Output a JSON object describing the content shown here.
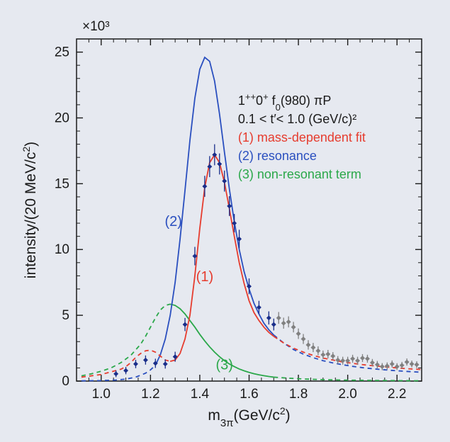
{
  "chart": {
    "type": "line+scatter",
    "background_color": "#e6e9f0",
    "plot_bg": "#e6e9f0",
    "border_color": "#1a1a1a",
    "xlim": [
      0.9,
      2.3
    ],
    "ylim": [
      0,
      26
    ],
    "xticks": [
      1.0,
      1.2,
      1.4,
      1.6,
      1.8,
      2.0,
      2.2
    ],
    "yticks": [
      0,
      5,
      10,
      15,
      20,
      25
    ],
    "xlabel": "m₃π(GeV/c²)",
    "ylabel": "intensity/(20 MeV/c²)",
    "y_exponent": "×10³",
    "curves": {
      "fit": {
        "color": "#e63c2e",
        "width": 1.8,
        "solid": [
          [
            1.28,
            1.5
          ],
          [
            1.3,
            1.6
          ],
          [
            1.32,
            2.1
          ],
          [
            1.34,
            3.2
          ],
          [
            1.36,
            5.0
          ],
          [
            1.38,
            8.0
          ],
          [
            1.4,
            11.6
          ],
          [
            1.42,
            14.7
          ],
          [
            1.44,
            16.6
          ],
          [
            1.46,
            17.2
          ],
          [
            1.48,
            16.6
          ],
          [
            1.5,
            15.1
          ],
          [
            1.52,
            13.1
          ],
          [
            1.54,
            11.0
          ],
          [
            1.56,
            9.0
          ],
          [
            1.58,
            7.4
          ],
          [
            1.6,
            6.1
          ],
          [
            1.62,
            5.2
          ],
          [
            1.64,
            4.6
          ],
          [
            1.66,
            4.1
          ],
          [
            1.68,
            3.7
          ],
          [
            1.7,
            3.4
          ]
        ],
        "dash": [
          [
            0.92,
            0.3
          ],
          [
            0.96,
            0.4
          ],
          [
            1.0,
            0.5
          ],
          [
            1.04,
            0.7
          ],
          [
            1.08,
            0.9
          ],
          [
            1.1,
            1.1
          ],
          [
            1.12,
            1.4
          ],
          [
            1.14,
            1.8
          ],
          [
            1.16,
            2.1
          ],
          [
            1.18,
            2.3
          ],
          [
            1.2,
            2.35
          ],
          [
            1.22,
            2.2
          ],
          [
            1.24,
            1.9
          ],
          [
            1.26,
            1.6
          ],
          [
            1.28,
            1.5
          ],
          [
            1.7,
            3.4
          ],
          [
            1.74,
            2.9
          ],
          [
            1.78,
            2.5
          ],
          [
            1.82,
            2.2
          ],
          [
            1.86,
            1.95
          ],
          [
            1.9,
            1.75
          ],
          [
            1.94,
            1.6
          ],
          [
            1.98,
            1.45
          ],
          [
            2.02,
            1.35
          ],
          [
            2.06,
            1.25
          ],
          [
            2.1,
            1.17
          ],
          [
            2.14,
            1.1
          ],
          [
            2.18,
            1.03
          ],
          [
            2.22,
            0.97
          ],
          [
            2.26,
            0.92
          ],
          [
            2.3,
            0.88
          ]
        ],
        "label": "(1)"
      },
      "resonance": {
        "color": "#2a4fbf",
        "width": 1.8,
        "solid": [
          [
            1.22,
            1.2
          ],
          [
            1.24,
            2.0
          ],
          [
            1.26,
            3.2
          ],
          [
            1.28,
            5.0
          ],
          [
            1.3,
            7.5
          ],
          [
            1.32,
            10.8
          ],
          [
            1.34,
            14.5
          ],
          [
            1.36,
            18.3
          ],
          [
            1.38,
            21.5
          ],
          [
            1.4,
            23.7
          ],
          [
            1.42,
            24.6
          ],
          [
            1.44,
            24.3
          ],
          [
            1.46,
            22.8
          ],
          [
            1.48,
            20.3
          ],
          [
            1.5,
            17.4
          ],
          [
            1.52,
            14.6
          ],
          [
            1.54,
            12.1
          ],
          [
            1.56,
            10.0
          ],
          [
            1.58,
            8.3
          ],
          [
            1.6,
            7.0
          ],
          [
            1.62,
            5.9
          ],
          [
            1.64,
            5.1
          ],
          [
            1.66,
            4.4
          ],
          [
            1.68,
            3.9
          ],
          [
            1.7,
            3.5
          ]
        ],
        "dash": [
          [
            0.92,
            0.02
          ],
          [
            1.0,
            0.04
          ],
          [
            1.06,
            0.08
          ],
          [
            1.1,
            0.15
          ],
          [
            1.14,
            0.3
          ],
          [
            1.18,
            0.6
          ],
          [
            1.2,
            0.85
          ],
          [
            1.22,
            1.2
          ],
          [
            1.7,
            3.5
          ],
          [
            1.74,
            2.9
          ],
          [
            1.78,
            2.4
          ],
          [
            1.82,
            2.05
          ],
          [
            1.86,
            1.78
          ],
          [
            1.9,
            1.55
          ],
          [
            1.94,
            1.38
          ],
          [
            1.98,
            1.24
          ],
          [
            2.02,
            1.12
          ],
          [
            2.06,
            1.02
          ],
          [
            2.1,
            0.94
          ],
          [
            2.14,
            0.87
          ],
          [
            2.18,
            0.81
          ],
          [
            2.22,
            0.76
          ],
          [
            2.26,
            0.71
          ],
          [
            2.3,
            0.67
          ]
        ],
        "label": "(2)"
      },
      "nonres": {
        "color": "#2ba84a",
        "width": 1.8,
        "solid": [
          [
            1.28,
            5.85
          ],
          [
            1.3,
            5.75
          ],
          [
            1.32,
            5.5
          ],
          [
            1.34,
            5.1
          ],
          [
            1.36,
            4.6
          ],
          [
            1.38,
            4.1
          ],
          [
            1.4,
            3.55
          ],
          [
            1.42,
            3.05
          ],
          [
            1.44,
            2.6
          ],
          [
            1.46,
            2.2
          ],
          [
            1.48,
            1.85
          ],
          [
            1.5,
            1.55
          ],
          [
            1.52,
            1.3
          ],
          [
            1.54,
            1.1
          ],
          [
            1.56,
            0.92
          ],
          [
            1.58,
            0.78
          ],
          [
            1.6,
            0.66
          ],
          [
            1.62,
            0.56
          ],
          [
            1.64,
            0.48
          ],
          [
            1.66,
            0.41
          ],
          [
            1.68,
            0.35
          ],
          [
            1.7,
            0.3
          ]
        ],
        "dash": [
          [
            0.92,
            0.4
          ],
          [
            0.96,
            0.55
          ],
          [
            1.0,
            0.75
          ],
          [
            1.04,
            1.0
          ],
          [
            1.08,
            1.4
          ],
          [
            1.12,
            1.95
          ],
          [
            1.16,
            2.8
          ],
          [
            1.18,
            3.4
          ],
          [
            1.2,
            4.1
          ],
          [
            1.22,
            4.8
          ],
          [
            1.24,
            5.4
          ],
          [
            1.26,
            5.75
          ],
          [
            1.28,
            5.85
          ],
          [
            1.7,
            0.3
          ],
          [
            1.76,
            0.22
          ],
          [
            1.82,
            0.16
          ],
          [
            1.88,
            0.12
          ],
          [
            1.94,
            0.09
          ],
          [
            2.0,
            0.07
          ],
          [
            2.1,
            0.05
          ],
          [
            2.2,
            0.035
          ],
          [
            2.3,
            0.025
          ]
        ],
        "label": "(3)"
      }
    },
    "data_points": {
      "blue": {
        "color": "#1a2e8a",
        "marker_size": 3.2,
        "points": [
          [
            1.06,
            0.55,
            0.25
          ],
          [
            1.1,
            0.8,
            0.28
          ],
          [
            1.14,
            1.3,
            0.32
          ],
          [
            1.18,
            1.6,
            0.35
          ],
          [
            1.22,
            1.35,
            0.35
          ],
          [
            1.26,
            1.3,
            0.35
          ],
          [
            1.3,
            1.85,
            0.38
          ],
          [
            1.34,
            4.3,
            0.5
          ],
          [
            1.38,
            9.5,
            0.7
          ],
          [
            1.42,
            14.8,
            0.8
          ],
          [
            1.44,
            16.3,
            0.8
          ],
          [
            1.46,
            17.2,
            0.8
          ],
          [
            1.48,
            16.5,
            0.8
          ],
          [
            1.5,
            15.2,
            0.8
          ],
          [
            1.52,
            13.3,
            0.75
          ],
          [
            1.54,
            12.0,
            0.7
          ],
          [
            1.56,
            10.8,
            0.7
          ],
          [
            1.6,
            7.2,
            0.6
          ],
          [
            1.64,
            5.6,
            0.5
          ],
          [
            1.68,
            4.8,
            0.5
          ],
          [
            1.7,
            4.3,
            0.45
          ]
        ]
      },
      "gray": {
        "color": "#808080",
        "marker_size": 3.2,
        "points": [
          [
            1.72,
            4.8,
            0.45
          ],
          [
            1.74,
            4.4,
            0.42
          ],
          [
            1.76,
            4.5,
            0.42
          ],
          [
            1.78,
            4.1,
            0.4
          ],
          [
            1.8,
            3.6,
            0.4
          ],
          [
            1.82,
            3.2,
            0.38
          ],
          [
            1.84,
            2.75,
            0.36
          ],
          [
            1.86,
            2.55,
            0.35
          ],
          [
            1.88,
            2.3,
            0.34
          ],
          [
            1.9,
            2.0,
            0.32
          ],
          [
            1.92,
            2.05,
            0.32
          ],
          [
            1.94,
            1.9,
            0.3
          ],
          [
            1.96,
            1.6,
            0.3
          ],
          [
            1.98,
            1.55,
            0.3
          ],
          [
            2.0,
            1.55,
            0.3
          ],
          [
            2.02,
            1.7,
            0.3
          ],
          [
            2.04,
            1.55,
            0.3
          ],
          [
            2.06,
            1.75,
            0.3
          ],
          [
            2.08,
            1.7,
            0.3
          ],
          [
            2.1,
            1.4,
            0.28
          ],
          [
            2.12,
            1.25,
            0.28
          ],
          [
            2.14,
            1.1,
            0.27
          ],
          [
            2.16,
            1.15,
            0.27
          ],
          [
            2.18,
            1.3,
            0.27
          ],
          [
            2.2,
            1.1,
            0.26
          ],
          [
            2.22,
            1.2,
            0.26
          ],
          [
            2.24,
            1.45,
            0.27
          ],
          [
            2.26,
            1.3,
            0.26
          ],
          [
            2.28,
            1.25,
            0.26
          ]
        ]
      }
    },
    "legend": {
      "line1_a": "1",
      "line1_b": "++",
      "line1_c": "0",
      "line1_d": "+",
      "line1_e": " f",
      "line1_f": "0",
      "line1_g": "(980) πP",
      "line2": "0.1 < t′< 1.0 (GeV/c)²",
      "item1": "(1) mass-dependent fit",
      "item2": "(2) resonance",
      "item3": "(3) non-resonant term",
      "text_color": "#1a1a1a"
    }
  }
}
